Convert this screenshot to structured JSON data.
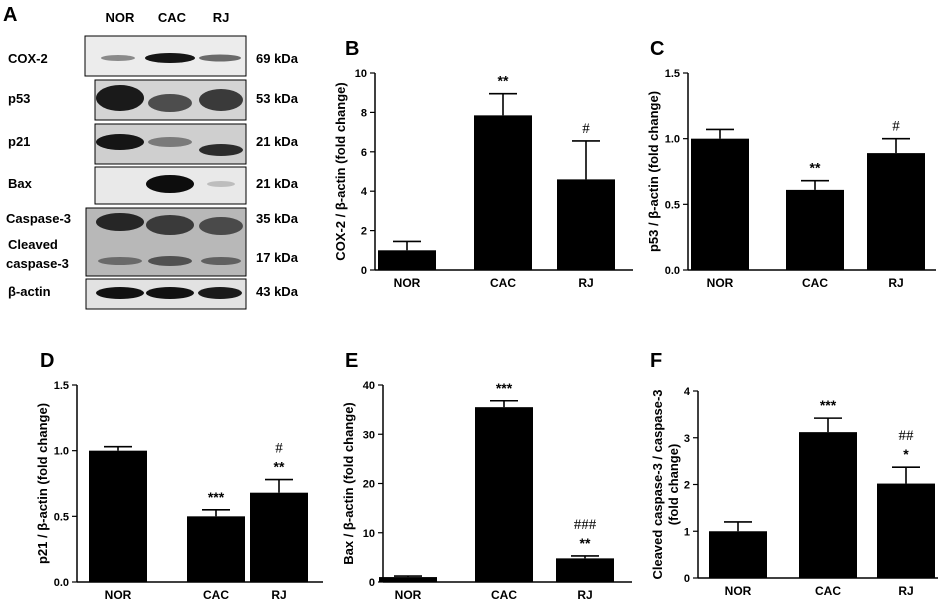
{
  "blot": {
    "panel_letter": "A",
    "lanes": [
      "NOR",
      "CAC",
      "RJ"
    ],
    "rows": [
      {
        "label": "COX-2",
        "kda": "69 kDa"
      },
      {
        "label": "p53",
        "kda": "53 kDa"
      },
      {
        "label": "p21",
        "kda": "21 kDa"
      },
      {
        "label": "Bax",
        "kda": "21 kDa"
      },
      {
        "label": "Caspase-3",
        "kda": "35 kDa"
      },
      {
        "label": "Cleaved caspase-3",
        "label_line1": "Cleaved",
        "label_line2": "caspase-3",
        "kda": "17 kDa"
      },
      {
        "label": "β-actin",
        "kda": "43 kDa"
      }
    ]
  },
  "chart_data": [
    {
      "panel": "B",
      "type": "bar",
      "categories": [
        "NOR",
        "CAC",
        "RJ"
      ],
      "values": [
        1.0,
        7.85,
        4.6
      ],
      "errors": [
        0.45,
        1.1,
        1.95
      ],
      "ylabel": "COX-2 / β-actin (fold change)",
      "ylim": [
        0,
        10
      ],
      "yticks": [
        "0",
        "2",
        "4",
        "6",
        "8",
        "10"
      ],
      "ytick_values": [
        0,
        2,
        4,
        6,
        8,
        10
      ],
      "annotations": [
        [],
        [
          "**"
        ],
        [
          "#"
        ]
      ]
    },
    {
      "panel": "C",
      "type": "bar",
      "categories": [
        "NOR",
        "CAC",
        "RJ"
      ],
      "values": [
        1.0,
        0.61,
        0.89
      ],
      "errors": [
        0.07,
        0.07,
        0.11
      ],
      "ylabel": "p53 / β-actin (fold change)",
      "ylim": [
        0,
        1.5
      ],
      "yticks": [
        "0.0",
        "0.5",
        "1.0",
        "1.5"
      ],
      "ytick_values": [
        0,
        0.5,
        1.0,
        1.5
      ],
      "annotations": [
        [],
        [
          "**"
        ],
        [
          "#"
        ]
      ]
    },
    {
      "panel": "D",
      "type": "bar",
      "categories": [
        "NOR",
        "CAC",
        "RJ"
      ],
      "values": [
        1.0,
        0.5,
        0.68
      ],
      "errors": [
        0.03,
        0.05,
        0.1
      ],
      "ylabel": "p21 / β-actin (fold change)",
      "ylim": [
        0,
        1.5
      ],
      "yticks": [
        "0.0",
        "0.5",
        "1.0",
        "1.5"
      ],
      "ytick_values": [
        0,
        0.5,
        1.0,
        1.5
      ],
      "annotations": [
        [],
        [
          "***"
        ],
        [
          "**",
          "#"
        ]
      ]
    },
    {
      "panel": "E",
      "type": "bar",
      "categories": [
        "NOR",
        "CAC",
        "RJ"
      ],
      "values": [
        1.0,
        35.5,
        4.8
      ],
      "errors": [
        0.2,
        1.3,
        0.5
      ],
      "ylabel": "Bax / β-actin (fold change)",
      "ylim": [
        0,
        40
      ],
      "yticks": [
        "0",
        "10",
        "20",
        "30",
        "40"
      ],
      "ytick_values": [
        0,
        10,
        20,
        30,
        40
      ],
      "annotations": [
        [],
        [
          "***"
        ],
        [
          "**",
          "###"
        ]
      ]
    },
    {
      "panel": "F",
      "type": "bar",
      "categories": [
        "NOR",
        "CAC",
        "RJ"
      ],
      "values": [
        1.0,
        3.12,
        2.02
      ],
      "errors": [
        0.2,
        0.3,
        0.35
      ],
      "ylabel": "Cleaved caspase-3 / caspase-3 (fold change)",
      "ylabel_line1": "Cleaved caspase-3 / caspase-3",
      "ylabel_line2": "(fold change)",
      "ylim": [
        0,
        4
      ],
      "yticks": [
        "0",
        "1",
        "2",
        "3",
        "4"
      ],
      "ytick_values": [
        0,
        1,
        2,
        3,
        4
      ],
      "annotations": [
        [],
        [
          "***"
        ],
        [
          "*",
          "##"
        ]
      ]
    }
  ]
}
